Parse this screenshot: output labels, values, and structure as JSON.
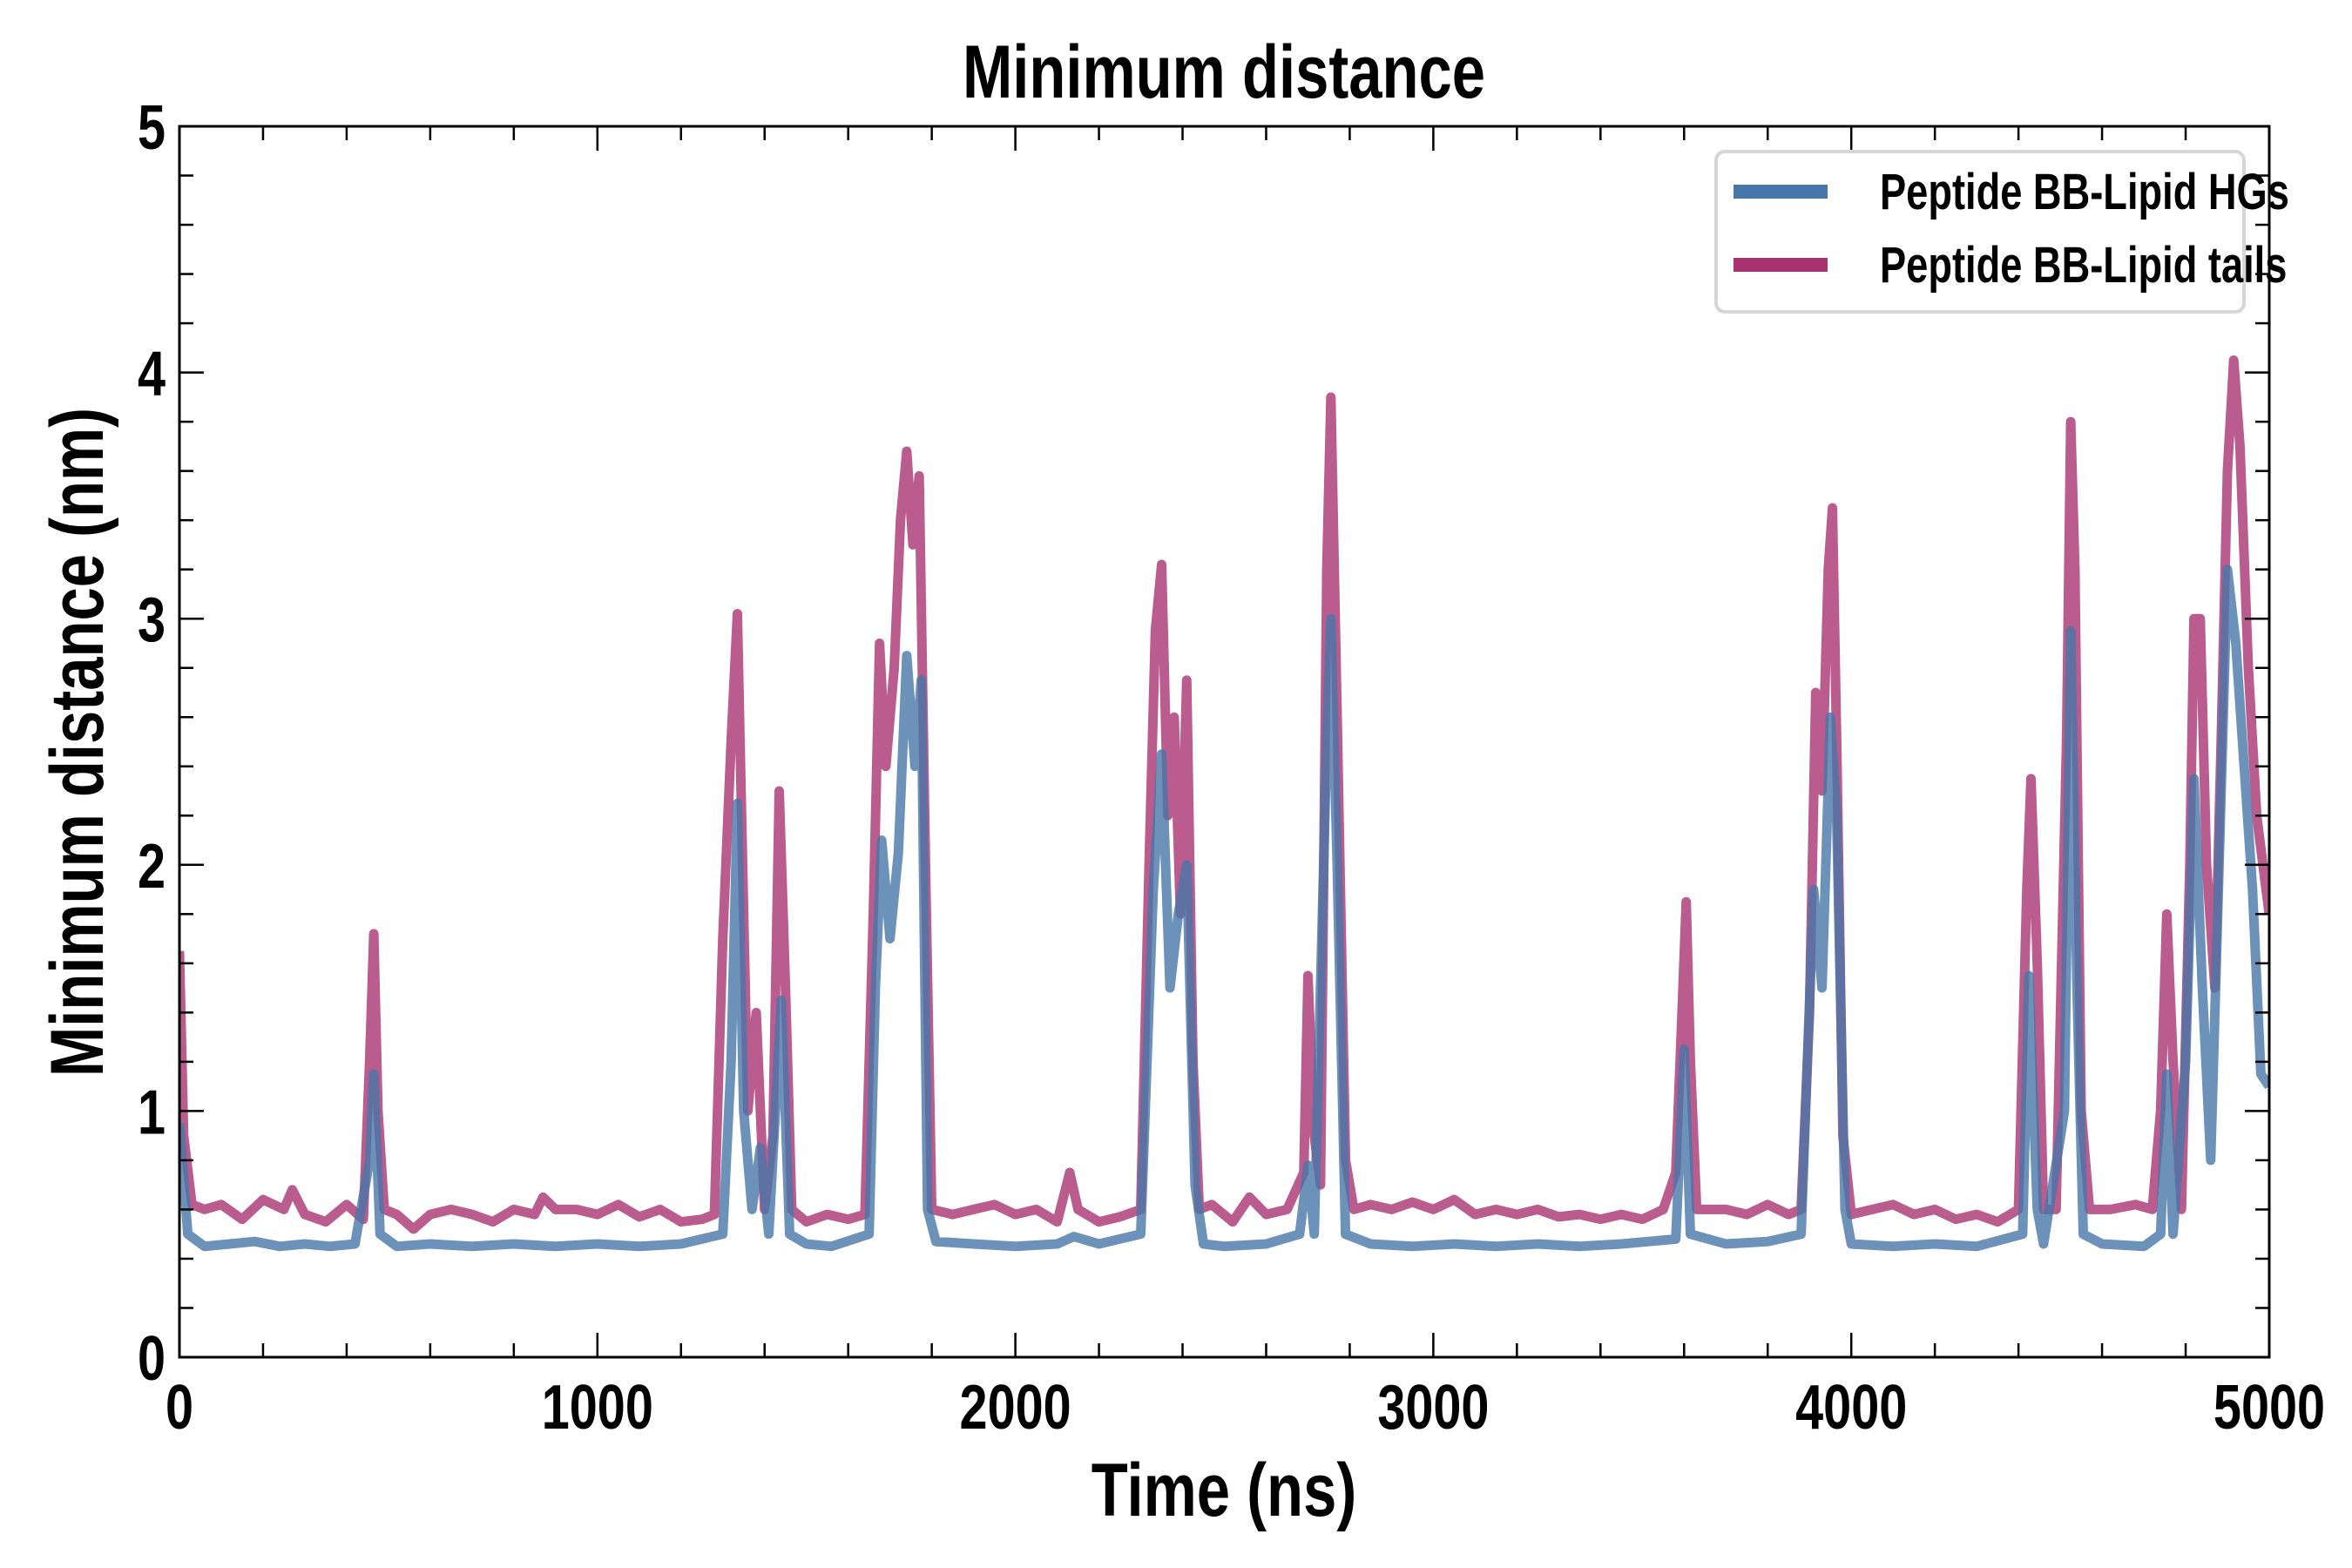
{
  "chart_data": {
    "type": "line",
    "title": "Minimum distance",
    "xlabel": "Time (ns)",
    "ylabel": "Minimum distance (nm)",
    "xlim": [
      0,
      5000
    ],
    "ylim": [
      0,
      5
    ],
    "xticks": [
      "0",
      "1000",
      "2000",
      "3000",
      "4000",
      "5000"
    ],
    "yticks": [
      "0",
      "1",
      "2",
      "3",
      "4",
      "5"
    ],
    "grid": false,
    "legend_position": "top-right",
    "series": [
      {
        "name": "Peptide BB-Lipid HGs",
        "color": "#4777a8",
        "x": [
          0,
          20,
          60,
          120,
          180,
          240,
          300,
          360,
          420,
          455,
          465,
          480,
          520,
          600,
          700,
          800,
          900,
          1000,
          1100,
          1200,
          1300,
          1320,
          1335,
          1350,
          1370,
          1390,
          1410,
          1440,
          1460,
          1500,
          1560,
          1650,
          1665,
          1680,
          1700,
          1720,
          1740,
          1760,
          1775,
          1790,
          1810,
          1900,
          2000,
          2100,
          2140,
          2200,
          2300,
          2330,
          2350,
          2370,
          2390,
          2410,
          2430,
          2450,
          2500,
          2600,
          2680,
          2700,
          2715,
          2745,
          2755,
          2770,
          2790,
          2850,
          2950,
          3050,
          3150,
          3250,
          3350,
          3450,
          3580,
          3600,
          3615,
          3700,
          3800,
          3880,
          3910,
          3930,
          3950,
          3965,
          3985,
          4000,
          4100,
          4200,
          4300,
          4410,
          4425,
          4445,
          4460,
          4510,
          4525,
          4540,
          4555,
          4600,
          4700,
          4740,
          4755,
          4770,
          4800,
          4820,
          4840,
          4860,
          4880,
          4900,
          4920,
          4940,
          4960,
          4980,
          5000
        ],
        "y": [
          0.95,
          0.5,
          0.45,
          0.46,
          0.47,
          0.45,
          0.46,
          0.45,
          0.46,
          0.8,
          1.15,
          0.5,
          0.45,
          0.46,
          0.45,
          0.46,
          0.45,
          0.46,
          0.45,
          0.46,
          0.5,
          1.2,
          2.25,
          1.0,
          0.6,
          0.85,
          0.5,
          1.45,
          0.5,
          0.46,
          0.45,
          0.5,
          1.5,
          2.1,
          1.7,
          2.05,
          2.85,
          2.4,
          2.75,
          0.6,
          0.47,
          0.46,
          0.45,
          0.46,
          0.49,
          0.46,
          0.5,
          1.9,
          2.45,
          1.5,
          1.8,
          2.0,
          0.7,
          0.46,
          0.45,
          0.46,
          0.5,
          0.78,
          0.5,
          2.5,
          3.0,
          2.0,
          0.5,
          0.46,
          0.45,
          0.46,
          0.45,
          0.46,
          0.45,
          0.46,
          0.48,
          1.25,
          0.5,
          0.46,
          0.47,
          0.5,
          1.9,
          1.5,
          2.6,
          2.2,
          0.6,
          0.46,
          0.45,
          0.46,
          0.45,
          0.5,
          1.55,
          0.6,
          0.46,
          1.0,
          2.95,
          1.5,
          0.5,
          0.46,
          0.45,
          0.5,
          1.15,
          0.5,
          1.2,
          2.35,
          1.5,
          0.8,
          2.0,
          3.2,
          2.9,
          2.4,
          1.9,
          1.15,
          1.1
        ]
      },
      {
        "name": "Peptide BB-Lipid tails",
        "color": "#a93371",
        "x": [
          0,
          10,
          30,
          60,
          100,
          150,
          200,
          250,
          270,
          300,
          350,
          400,
          440,
          455,
          465,
          475,
          490,
          520,
          560,
          600,
          650,
          700,
          750,
          800,
          850,
          870,
          900,
          950,
          1000,
          1050,
          1100,
          1150,
          1200,
          1250,
          1280,
          1300,
          1320,
          1335,
          1345,
          1360,
          1380,
          1400,
          1420,
          1435,
          1450,
          1465,
          1500,
          1550,
          1600,
          1640,
          1660,
          1675,
          1690,
          1710,
          1725,
          1740,
          1755,
          1770,
          1785,
          1800,
          1850,
          1900,
          1950,
          2000,
          2050,
          2100,
          2130,
          2150,
          2200,
          2250,
          2300,
          2320,
          2335,
          2350,
          2365,
          2380,
          2395,
          2410,
          2425,
          2440,
          2470,
          2520,
          2560,
          2600,
          2650,
          2690,
          2700,
          2715,
          2730,
          2745,
          2755,
          2770,
          2790,
          2810,
          2850,
          2900,
          2950,
          3000,
          3050,
          3100,
          3150,
          3200,
          3250,
          3300,
          3350,
          3400,
          3450,
          3500,
          3550,
          3580,
          3595,
          3605,
          3615,
          3630,
          3700,
          3750,
          3800,
          3850,
          3880,
          3900,
          3915,
          3930,
          3945,
          3955,
          3965,
          3980,
          4000,
          4050,
          4100,
          4150,
          4200,
          4250,
          4300,
          4350,
          4400,
          4420,
          4430,
          4445,
          4460,
          4490,
          4515,
          4525,
          4535,
          4550,
          4570,
          4620,
          4680,
          4720,
          4740,
          4755,
          4770,
          4790,
          4810,
          4820,
          4835,
          4850,
          4870,
          4885,
          4900,
          4915,
          4930,
          4950,
          4970,
          4985,
          5000
        ],
        "y": [
          1.65,
          0.9,
          0.62,
          0.6,
          0.62,
          0.56,
          0.64,
          0.6,
          0.68,
          0.58,
          0.55,
          0.62,
          0.56,
          1.2,
          1.72,
          1.0,
          0.6,
          0.58,
          0.52,
          0.58,
          0.6,
          0.58,
          0.55,
          0.6,
          0.58,
          0.65,
          0.6,
          0.6,
          0.58,
          0.62,
          0.57,
          0.6,
          0.55,
          0.56,
          0.58,
          1.7,
          2.5,
          3.02,
          2.2,
          1.0,
          1.4,
          0.6,
          0.9,
          2.3,
          1.5,
          0.6,
          0.55,
          0.58,
          0.56,
          0.58,
          1.8,
          2.9,
          2.4,
          2.8,
          3.4,
          3.68,
          3.3,
          3.58,
          2.0,
          0.6,
          0.58,
          0.6,
          0.62,
          0.58,
          0.6,
          0.55,
          0.75,
          0.6,
          0.55,
          0.57,
          0.6,
          2.0,
          2.95,
          3.22,
          2.2,
          2.6,
          1.8,
          2.75,
          1.2,
          0.6,
          0.62,
          0.55,
          0.65,
          0.58,
          0.6,
          0.75,
          1.55,
          0.9,
          0.7,
          3.2,
          3.9,
          2.6,
          0.8,
          0.6,
          0.62,
          0.6,
          0.63,
          0.6,
          0.64,
          0.58,
          0.6,
          0.58,
          0.6,
          0.57,
          0.58,
          0.56,
          0.58,
          0.56,
          0.6,
          0.75,
          1.4,
          1.85,
          1.2,
          0.6,
          0.6,
          0.58,
          0.62,
          0.58,
          0.6,
          1.4,
          2.7,
          2.3,
          3.2,
          3.45,
          2.5,
          0.9,
          0.58,
          0.6,
          0.62,
          0.58,
          0.6,
          0.56,
          0.58,
          0.55,
          0.6,
          1.9,
          2.35,
          1.6,
          0.6,
          0.6,
          2.5,
          3.8,
          3.2,
          1.0,
          0.6,
          0.6,
          0.62,
          0.6,
          1.0,
          1.8,
          1.2,
          0.6,
          2.0,
          3.0,
          3.0,
          2.0,
          1.5,
          2.5,
          3.6,
          4.05,
          3.7,
          2.8,
          2.2,
          2.0,
          1.8
        ]
      }
    ]
  }
}
